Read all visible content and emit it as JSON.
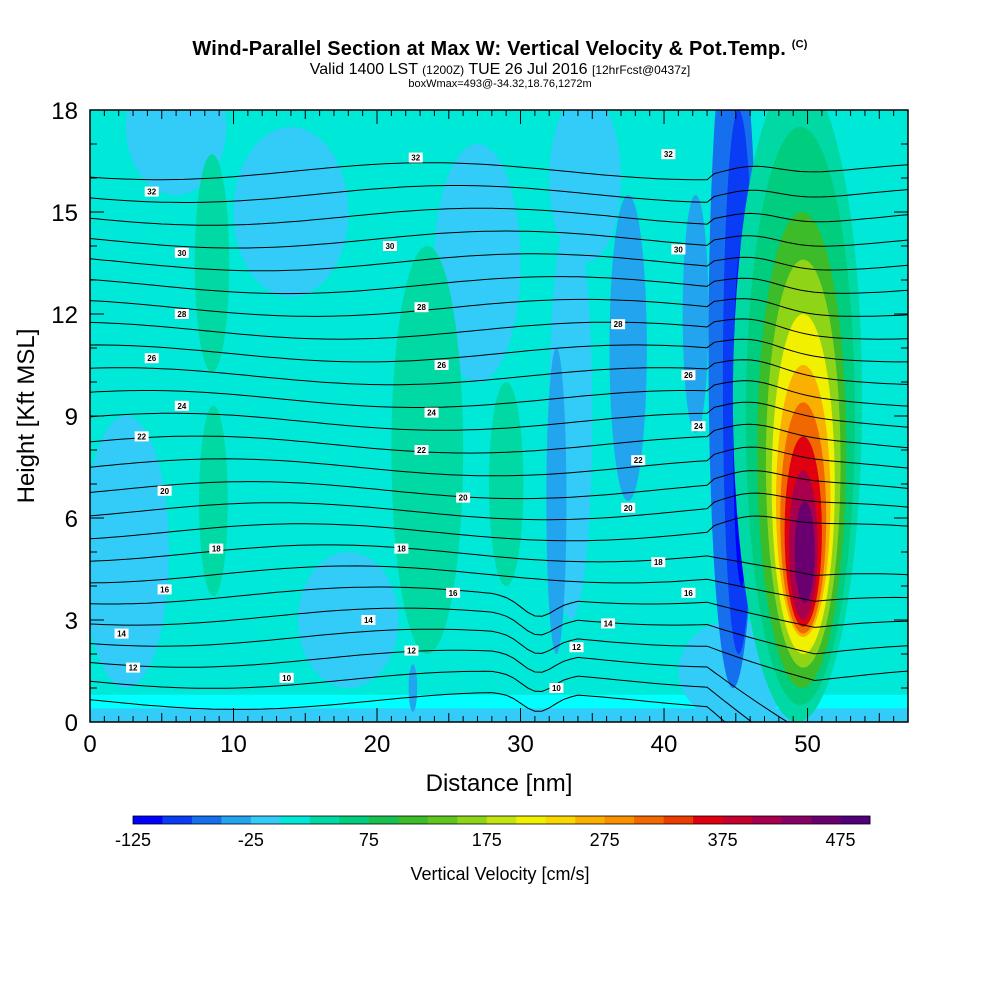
{
  "header": {
    "title": "Wind-Parallel Section at Max W: Vertical Velocity & Pot.Temp.",
    "title_mark": "(C)",
    "valid_prefix": "Valid 1400 LST",
    "valid_utc": "(1200Z)",
    "valid_date": "TUE 26 Jul 2016",
    "forecast": "[12hrFcst@0437z]",
    "box_info": "boxWmax=493@-34.32,18.76,1272m"
  },
  "chart_data": {
    "type": "heatmap",
    "xlabel": "Distance [nm]",
    "ylabel": "Height [Kft MSL]",
    "xlim": [
      0,
      57
    ],
    "ylim": [
      0,
      18
    ],
    "xticks": [
      0,
      10,
      20,
      30,
      40,
      50
    ],
    "yticks": [
      0,
      3,
      6,
      9,
      12,
      15,
      18
    ],
    "colorbar": {
      "title": "Vertical Velocity [cm/s]",
      "levels": [
        -125,
        -100,
        -75,
        -50,
        -25,
        0,
        25,
        50,
        75,
        100,
        125,
        150,
        175,
        200,
        225,
        250,
        275,
        300,
        325,
        350,
        375,
        400,
        425,
        450,
        475,
        500
      ],
      "tick_labels": [
        "-125",
        "-25",
        "75",
        "175",
        "275",
        "375",
        "475"
      ],
      "colors": [
        "#0000ff",
        "#0a3cf5",
        "#1670ee",
        "#23a4ee",
        "#33ccf8",
        "#00e8d8",
        "#00d9a3",
        "#00cd7e",
        "#18c050",
        "#3cbc28",
        "#60c61e",
        "#90d418",
        "#c4e410",
        "#f0f000",
        "#f8d800",
        "#fab000",
        "#f89000",
        "#f26800",
        "#ec3c00",
        "#e00010",
        "#c80030",
        "#a8004c",
        "#880066",
        "#6a0070",
        "#50007a"
      ],
      "background_color": "#00ffff"
    },
    "contours": {
      "variable": "potential temperature",
      "units": "C",
      "labels": [
        {
          "text": "32",
          "x": 4.3,
          "y": 15.6
        },
        {
          "text": "32",
          "x": 22.7,
          "y": 16.6
        },
        {
          "text": "32",
          "x": 40.3,
          "y": 16.7
        },
        {
          "text": "30",
          "x": 6.4,
          "y": 13.8
        },
        {
          "text": "30",
          "x": 20.9,
          "y": 14.0
        },
        {
          "text": "30",
          "x": 41.0,
          "y": 13.9
        },
        {
          "text": "28",
          "x": 6.4,
          "y": 12.0
        },
        {
          "text": "28",
          "x": 23.1,
          "y": 12.2
        },
        {
          "text": "28",
          "x": 36.8,
          "y": 11.7
        },
        {
          "text": "26",
          "x": 4.3,
          "y": 10.7
        },
        {
          "text": "26",
          "x": 24.5,
          "y": 10.5
        },
        {
          "text": "26",
          "x": 41.7,
          "y": 10.2
        },
        {
          "text": "24",
          "x": 6.4,
          "y": 9.3
        },
        {
          "text": "24",
          "x": 23.8,
          "y": 9.1
        },
        {
          "text": "24",
          "x": 42.4,
          "y": 8.7
        },
        {
          "text": "22",
          "x": 3.6,
          "y": 8.4
        },
        {
          "text": "22",
          "x": 23.1,
          "y": 8.0
        },
        {
          "text": "22",
          "x": 38.2,
          "y": 7.7
        },
        {
          "text": "20",
          "x": 5.2,
          "y": 6.8
        },
        {
          "text": "20",
          "x": 26.0,
          "y": 6.6
        },
        {
          "text": "20",
          "x": 37.5,
          "y": 6.3
        },
        {
          "text": "18",
          "x": 8.8,
          "y": 5.1
        },
        {
          "text": "18",
          "x": 21.7,
          "y": 5.1
        },
        {
          "text": "18",
          "x": 39.6,
          "y": 4.7
        },
        {
          "text": "16",
          "x": 5.2,
          "y": 3.9
        },
        {
          "text": "16",
          "x": 25.3,
          "y": 3.8
        },
        {
          "text": "16",
          "x": 41.7,
          "y": 3.8
        },
        {
          "text": "14",
          "x": 2.2,
          "y": 2.6
        },
        {
          "text": "14",
          "x": 19.4,
          "y": 3.0
        },
        {
          "text": "14",
          "x": 36.1,
          "y": 2.9
        },
        {
          "text": "12",
          "x": 3.0,
          "y": 1.6
        },
        {
          "text": "12",
          "x": 22.4,
          "y": 2.1
        },
        {
          "text": "12",
          "x": 33.9,
          "y": 2.2
        },
        {
          "text": "10",
          "x": 13.7,
          "y": 1.3
        },
        {
          "text": "10",
          "x": 32.5,
          "y": 1.0
        }
      ]
    }
  }
}
